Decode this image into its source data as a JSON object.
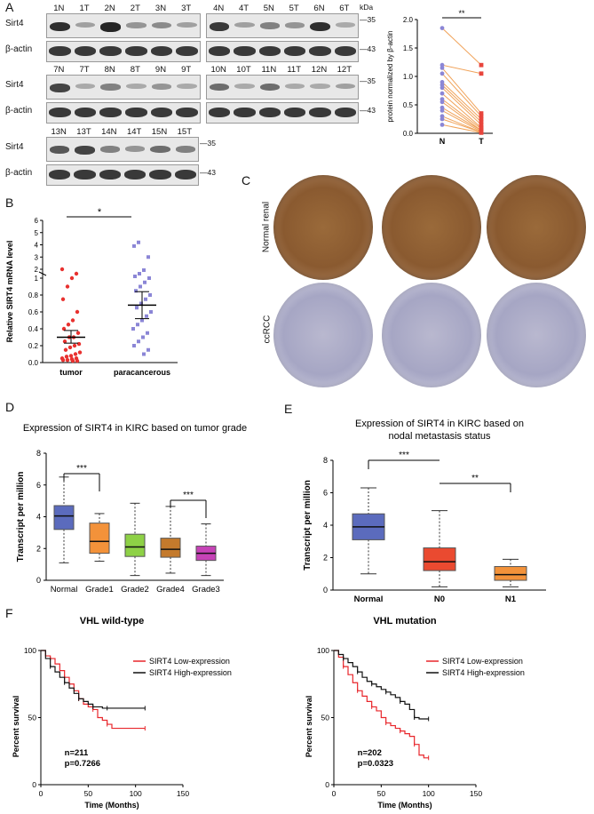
{
  "panel_labels": {
    "a": "A",
    "b": "B",
    "c": "C",
    "d": "D",
    "e": "E",
    "f": "F"
  },
  "blot": {
    "kda_header": "kDa",
    "protein_label": "Sirt4",
    "control_label": "β-actin",
    "mw_sirt4": "35",
    "mw_actin": "43",
    "group1_lanes": [
      "1N",
      "1T",
      "2N",
      "2T",
      "3N",
      "3T"
    ],
    "group2_lanes": [
      "4N",
      "4T",
      "5N",
      "5T",
      "6N",
      "6T"
    ],
    "group3_lanes": [
      "7N",
      "7T",
      "8N",
      "8T",
      "9N",
      "9T"
    ],
    "group4_lanes": [
      "10N",
      "10T",
      "11N",
      "11T",
      "12N",
      "12T"
    ],
    "group5_lanes": [
      "13N",
      "13T",
      "14N",
      "14T",
      "15N",
      "15T"
    ],
    "sirt4_intensity": {
      "g1": [
        0.9,
        0.35,
        0.95,
        0.4,
        0.45,
        0.35
      ],
      "g2": [
        0.85,
        0.35,
        0.5,
        0.4,
        0.9,
        0.3
      ],
      "g3": [
        0.8,
        0.3,
        0.5,
        0.3,
        0.4,
        0.3
      ],
      "g4": [
        0.6,
        0.3,
        0.6,
        0.3,
        0.3,
        0.35
      ],
      "g5": [
        0.7,
        0.8,
        0.5,
        0.4,
        0.6,
        0.5
      ]
    }
  },
  "chart_data": [
    {
      "id": "A-paired",
      "type": "scatter",
      "title": "",
      "xlabel": "",
      "ylabel": "protein normalized by β-actin",
      "categories": [
        "N",
        "T"
      ],
      "ylim": [
        0,
        2.0
      ],
      "yticks": [
        "0.0",
        "0.5",
        "1.0",
        "1.5",
        "2.0"
      ],
      "significance": "**",
      "N": [
        1.85,
        1.2,
        1.15,
        1.05,
        0.9,
        0.85,
        0.8,
        0.7,
        0.6,
        0.55,
        0.45,
        0.4,
        0.3,
        0.25,
        0.15
      ],
      "T": [
        1.2,
        1.05,
        0.35,
        0.3,
        0.25,
        0.2,
        0.15,
        0.1,
        0.08,
        0.05,
        0.05,
        0.03,
        0.02,
        0.02,
        0.01
      ]
    },
    {
      "id": "B-mrna",
      "type": "scatter",
      "ylabel": "Relative SIRT4 mRNA level",
      "categories": [
        "tumor",
        "paracancerous"
      ],
      "yticks_lower": [
        "0.0",
        "0.2",
        "0.4",
        "0.6",
        "0.8",
        "1"
      ],
      "yticks_upper": [
        "2",
        "3",
        "4",
        "5",
        "6"
      ],
      "significance": "*",
      "means": [
        0.3,
        0.68
      ],
      "sem_low": [
        0.23,
        0.52
      ],
      "sem_high": [
        0.38,
        0.84
      ],
      "tumor": [
        2.0,
        1.5,
        1.0,
        0.9,
        0.75,
        0.6,
        0.5,
        0.45,
        0.4,
        0.35,
        0.3,
        0.3,
        0.25,
        0.22,
        0.2,
        0.18,
        0.15,
        0.12,
        0.1,
        0.08,
        0.07,
        0.05,
        0.05,
        0.04,
        0.03,
        0.03,
        0.02,
        0.02
      ],
      "paracancerous": [
        4.2,
        3.9,
        3.0,
        1.9,
        1.5,
        1.2,
        1.0,
        0.95,
        0.9,
        0.85,
        0.8,
        0.75,
        0.7,
        0.65,
        0.6,
        0.55,
        0.5,
        0.45,
        0.4,
        0.35,
        0.3,
        0.25,
        0.2,
        0.15,
        0.1
      ]
    },
    {
      "id": "D-grade",
      "type": "box",
      "title": "Expression of SIRT4 in KIRC based on tumor grade",
      "ylabel": "Transcript per million",
      "categories": [
        "Normal",
        "Grade1",
        "Grade2",
        "Grade4",
        "Grade3"
      ],
      "colors": [
        "#5b6bbd",
        "#f3923a",
        "#8ed146",
        "#c47a2c",
        "#c643b7"
      ],
      "ylim": [
        0,
        8
      ],
      "yticks": [
        "0",
        "2",
        "4",
        "6",
        "8"
      ],
      "boxes": [
        {
          "min": 1.1,
          "q1": 3.2,
          "median": 4.05,
          "q3": 4.7,
          "max": 6.5
        },
        {
          "min": 1.2,
          "q1": 1.7,
          "median": 2.45,
          "q3": 3.6,
          "max": 4.2
        },
        {
          "min": 0.3,
          "q1": 1.5,
          "median": 2.1,
          "q3": 2.9,
          "max": 4.85
        },
        {
          "min": 0.45,
          "q1": 1.45,
          "median": 1.95,
          "q3": 2.65,
          "max": 4.65
        },
        {
          "min": 0.3,
          "q1": 1.25,
          "median": 1.7,
          "q3": 2.15,
          "max": 3.55
        }
      ],
      "significance": [
        {
          "from": "Normal",
          "to": "Grade1",
          "label": "***"
        },
        {
          "from": "Grade4",
          "to": "Grade3",
          "label": "***"
        }
      ]
    },
    {
      "id": "E-nodal",
      "type": "box",
      "title_line1": "Expression of SIRT4 in KIRC based on",
      "title_line2": "nodal metastasis status",
      "ylabel": "Transcript per million",
      "categories": [
        "Normal",
        "N0",
        "N1"
      ],
      "colors": [
        "#5b6bbd",
        "#ea4a30",
        "#f3923a"
      ],
      "ylim": [
        0,
        8
      ],
      "yticks": [
        "0",
        "2",
        "4",
        "6",
        "8"
      ],
      "boxes": [
        {
          "min": 1.0,
          "q1": 3.1,
          "median": 3.9,
          "q3": 4.7,
          "max": 6.3
        },
        {
          "min": 0.2,
          "q1": 1.2,
          "median": 1.75,
          "q3": 2.6,
          "max": 4.9
        },
        {
          "min": 0.2,
          "q1": 0.6,
          "median": 0.95,
          "q3": 1.45,
          "max": 1.9
        }
      ],
      "significance": [
        {
          "from": "Normal",
          "to": "N0",
          "label": "***"
        },
        {
          "from": "N0",
          "to": "N1",
          "label": "**"
        }
      ]
    },
    {
      "id": "F-wild",
      "type": "line",
      "title": "VHL wild-type",
      "xlabel": "Time (Months)",
      "ylabel": "Percent survival",
      "xlim": [
        0,
        150
      ],
      "ylim": [
        0,
        100
      ],
      "xticks": [
        "0",
        "50",
        "100",
        "150"
      ],
      "yticks": [
        "0",
        "50",
        "100"
      ],
      "n_text": "n=211",
      "p_text": "p=0.7266",
      "series": [
        {
          "name": "SIRT4 Low-expression",
          "color": "#e8262b",
          "x": [
            0,
            5,
            10,
            15,
            20,
            25,
            30,
            35,
            40,
            45,
            50,
            55,
            60,
            65,
            70,
            75,
            80,
            110
          ],
          "y": [
            100,
            96,
            94,
            90,
            85,
            80,
            75,
            70,
            64,
            60,
            58,
            56,
            50,
            48,
            45,
            42,
            42,
            42
          ]
        },
        {
          "name": "SIRT4 High-expression",
          "color": "#111111",
          "x": [
            0,
            5,
            10,
            15,
            20,
            25,
            30,
            35,
            40,
            45,
            50,
            55,
            60,
            65,
            70,
            75,
            80,
            110
          ],
          "y": [
            100,
            94,
            88,
            84,
            80,
            76,
            72,
            68,
            64,
            62,
            60,
            58,
            58,
            57,
            57,
            57,
            57,
            57
          ]
        }
      ]
    },
    {
      "id": "F-mut",
      "type": "line",
      "title": "VHL mutation",
      "xlabel": "Time (Months)",
      "ylabel": "Percent survival",
      "xlim": [
        0,
        150
      ],
      "ylim": [
        0,
        100
      ],
      "xticks": [
        "0",
        "50",
        "100",
        "150"
      ],
      "yticks": [
        "0",
        "50",
        "100"
      ],
      "n_text": "n=202",
      "p_text": "p=0.0323",
      "series": [
        {
          "name": "SIRT4 Low-expression",
          "color": "#e8262b",
          "x": [
            0,
            5,
            10,
            15,
            20,
            25,
            30,
            35,
            40,
            45,
            50,
            55,
            60,
            65,
            70,
            75,
            80,
            85,
            90,
            95,
            100
          ],
          "y": [
            100,
            95,
            88,
            82,
            76,
            70,
            66,
            62,
            58,
            55,
            50,
            46,
            44,
            42,
            40,
            38,
            36,
            30,
            22,
            20,
            20
          ]
        },
        {
          "name": "SIRT4 High-expression",
          "color": "#111111",
          "x": [
            0,
            5,
            10,
            15,
            20,
            25,
            30,
            35,
            40,
            45,
            50,
            55,
            60,
            65,
            70,
            75,
            80,
            85,
            90,
            95,
            100
          ],
          "y": [
            100,
            97,
            94,
            91,
            88,
            84,
            80,
            77,
            75,
            73,
            71,
            69,
            67,
            65,
            62,
            60,
            56,
            50,
            49,
            49,
            49
          ]
        }
      ]
    }
  ],
  "ihc": {
    "row1_label": "Normal renal",
    "row2_label": "ccRCC",
    "row1_color": "#9a6a3a",
    "row2_color": "#b9b8cf"
  }
}
